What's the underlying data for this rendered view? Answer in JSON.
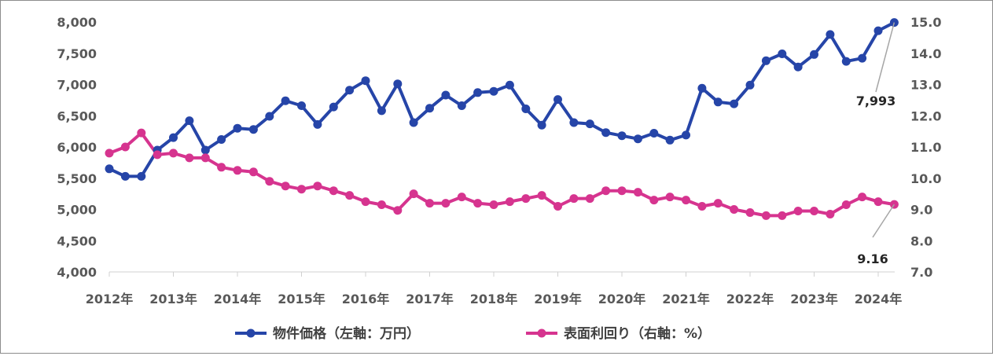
{
  "chart_data": {
    "type": "line",
    "x_labels": [
      "2012年",
      "2013年",
      "2014年",
      "2015年",
      "2016年",
      "2017年",
      "2018年",
      "2019年",
      "2020年",
      "2021年",
      "2022年",
      "2023年",
      "2024年"
    ],
    "left_axis": {
      "ylim": [
        4000,
        8000
      ],
      "ticks": [
        "4,000",
        "4,500",
        "5,000",
        "5,500",
        "6,000",
        "6,500",
        "7,000",
        "7,500",
        "8,000"
      ]
    },
    "right_axis": {
      "ylim": [
        7.0,
        15.0
      ],
      "ticks": [
        "7.0",
        "8.0",
        "9.0",
        "10.0",
        "11.0",
        "12.0",
        "13.0",
        "14.0",
        "15.0"
      ]
    },
    "series": [
      {
        "name": "物件価格（左軸：万円）",
        "axis": "left",
        "color": "#2645a8",
        "values": [
          5650,
          5530,
          5530,
          5950,
          6150,
          6420,
          5950,
          6120,
          6300,
          6280,
          6490,
          6740,
          6660,
          6360,
          6640,
          6910,
          7060,
          6580,
          7010,
          6390,
          6620,
          6830,
          6660,
          6870,
          6890,
          6990,
          6610,
          6350,
          6760,
          6390,
          6370,
          6230,
          6180,
          6130,
          6220,
          6110,
          6190,
          6940,
          6720,
          6690,
          6990,
          7380,
          7490,
          7280,
          7480,
          7800,
          7370,
          7420,
          7860,
          7993
        ]
      },
      {
        "name": "表面利回り（右軸：%）",
        "axis": "right",
        "color": "#d6348f",
        "values": [
          10.8,
          11.0,
          11.45,
          10.75,
          10.8,
          10.65,
          10.65,
          10.35,
          10.25,
          10.2,
          9.9,
          9.75,
          9.65,
          9.75,
          9.6,
          9.45,
          9.25,
          9.15,
          8.97,
          9.5,
          9.2,
          9.2,
          9.4,
          9.2,
          9.15,
          9.25,
          9.35,
          9.45,
          9.1,
          9.35,
          9.35,
          9.6,
          9.6,
          9.55,
          9.3,
          9.4,
          9.3,
          9.1,
          9.2,
          9.0,
          8.9,
          8.8,
          8.8,
          8.95,
          8.95,
          8.85,
          9.15,
          9.4,
          9.25,
          9.16
        ]
      }
    ],
    "annotations": [
      {
        "series": 0,
        "label": "7,993"
      },
      {
        "series": 1,
        "label": "9.16"
      }
    ],
    "legend_position": "bottom",
    "grid": false
  }
}
